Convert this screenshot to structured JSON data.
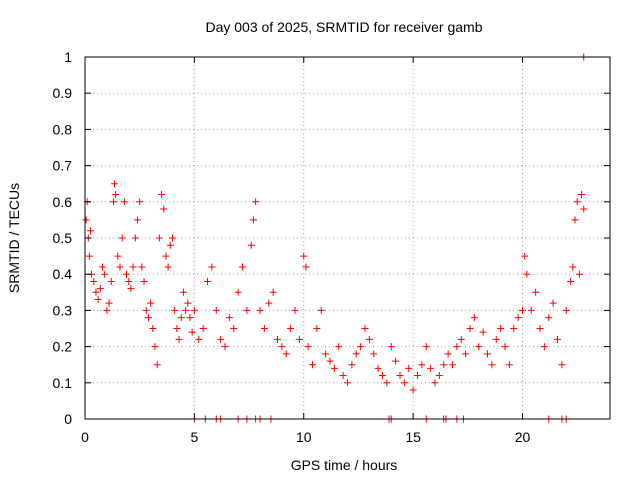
{
  "chart_data": {
    "type": "scatter",
    "title": "Day 003 of 2025, SRMTID for receiver gamb",
    "xlabel": "GPS time / hours",
    "ylabel": "SRMTID / TECUs",
    "xlim": [
      0,
      24
    ],
    "ylim": [
      0,
      1
    ],
    "xticks": [
      0,
      5,
      10,
      15,
      20
    ],
    "yticks": [
      0,
      0.1,
      0.2,
      0.3,
      0.4,
      0.5,
      0.6,
      0.7,
      0.8,
      0.9,
      1
    ],
    "grid": true,
    "marker": "plus",
    "color": "#ff0000",
    "x_tick_labels": [
      "0",
      "5",
      "10",
      "15",
      "20"
    ],
    "y_tick_labels": [
      "0",
      "0.1",
      "0.2",
      "0.3",
      "0.4",
      "0.5",
      "0.6",
      "0.7",
      "0.8",
      "0.9",
      "1"
    ],
    "series": [
      {
        "name": "SRMTID",
        "x": [
          0.05,
          0.1,
          0.15,
          0.2,
          0.25,
          0.3,
          0.4,
          0.5,
          0.6,
          0.7,
          0.8,
          0.9,
          1.0,
          1.1,
          1.2,
          1.3,
          1.35,
          1.4,
          1.5,
          1.6,
          1.7,
          1.8,
          1.9,
          2.0,
          2.1,
          2.2,
          2.3,
          2.4,
          2.5,
          2.6,
          2.7,
          2.8,
          2.9,
          3.0,
          3.1,
          3.2,
          3.3,
          3.4,
          3.5,
          3.6,
          3.7,
          3.8,
          3.9,
          4.0,
          4.1,
          4.2,
          4.3,
          4.4,
          4.5,
          4.6,
          4.7,
          4.8,
          4.9,
          5.0,
          5.2,
          5.4,
          5.6,
          5.8,
          6.0,
          6.2,
          6.4,
          6.6,
          6.8,
          7.0,
          7.2,
          7.4,
          7.6,
          7.7,
          7.8,
          8.0,
          8.2,
          8.4,
          8.6,
          8.8,
          9.0,
          9.2,
          9.4,
          9.6,
          9.8,
          10.0,
          10.1,
          10.2,
          10.4,
          10.6,
          10.8,
          11.0,
          11.2,
          11.4,
          11.6,
          11.8,
          12.0,
          12.2,
          12.4,
          12.6,
          12.8,
          13.0,
          13.2,
          13.4,
          13.6,
          13.8,
          14.0,
          14.2,
          14.4,
          14.6,
          14.8,
          15.0,
          15.2,
          15.4,
          15.6,
          15.8,
          16.0,
          16.2,
          16.4,
          16.6,
          16.8,
          17.0,
          17.2,
          17.4,
          17.6,
          17.8,
          18.0,
          18.2,
          18.4,
          18.6,
          18.8,
          19.0,
          19.2,
          19.4,
          19.6,
          19.8,
          20.0,
          20.1,
          20.2,
          20.4,
          20.6,
          20.8,
          21.0,
          21.2,
          21.4,
          21.6,
          21.8,
          22.0,
          22.2,
          22.3,
          22.4,
          22.5,
          22.6,
          22.7,
          22.8,
          5.0,
          5.5,
          6.0,
          6.2,
          7.0,
          7.4,
          7.8,
          8.0,
          8.5,
          13.9,
          14.0,
          15.6,
          16.4,
          16.5,
          17.0,
          17.3,
          21.2,
          21.8,
          22.0,
          22.8
        ],
        "y": [
          0.55,
          0.6,
          0.5,
          0.45,
          0.52,
          0.4,
          0.38,
          0.35,
          0.33,
          0.36,
          0.42,
          0.4,
          0.3,
          0.32,
          0.38,
          0.6,
          0.65,
          0.62,
          0.45,
          0.42,
          0.5,
          0.6,
          0.4,
          0.38,
          0.36,
          0.42,
          0.5,
          0.55,
          0.6,
          0.42,
          0.38,
          0.3,
          0.28,
          0.32,
          0.25,
          0.2,
          0.15,
          0.5,
          0.62,
          0.58,
          0.45,
          0.42,
          0.48,
          0.5,
          0.3,
          0.25,
          0.22,
          0.28,
          0.35,
          0.3,
          0.32,
          0.28,
          0.24,
          0.3,
          0.22,
          0.25,
          0.38,
          0.42,
          0.3,
          0.22,
          0.2,
          0.28,
          0.25,
          0.35,
          0.42,
          0.3,
          0.48,
          0.55,
          0.6,
          0.3,
          0.25,
          0.32,
          0.35,
          0.22,
          0.2,
          0.18,
          0.25,
          0.3,
          0.22,
          0.45,
          0.42,
          0.2,
          0.15,
          0.25,
          0.3,
          0.18,
          0.16,
          0.14,
          0.2,
          0.12,
          0.1,
          0.15,
          0.18,
          0.2,
          0.25,
          0.22,
          0.18,
          0.14,
          0.12,
          0.1,
          0.2,
          0.16,
          0.12,
          0.1,
          0.14,
          0.08,
          0.12,
          0.15,
          0.2,
          0.14,
          0.1,
          0.12,
          0.15,
          0.18,
          0.15,
          0.2,
          0.22,
          0.18,
          0.25,
          0.28,
          0.2,
          0.24,
          0.18,
          0.15,
          0.22,
          0.25,
          0.2,
          0.15,
          0.25,
          0.28,
          0.3,
          0.45,
          0.4,
          0.3,
          0.35,
          0.25,
          0.2,
          0.28,
          0.32,
          0.22,
          0.15,
          0.3,
          0.38,
          0.42,
          0.55,
          0.6,
          0.4,
          0.62,
          0.58,
          0.0,
          0.0,
          0.0,
          0.0,
          0.0,
          0.0,
          0.0,
          0.0,
          0.0,
          0.0,
          0.0,
          0.0,
          0.0,
          0.0,
          0.0,
          0.0,
          0.0,
          0.0,
          0.0,
          1.0
        ]
      }
    ]
  }
}
